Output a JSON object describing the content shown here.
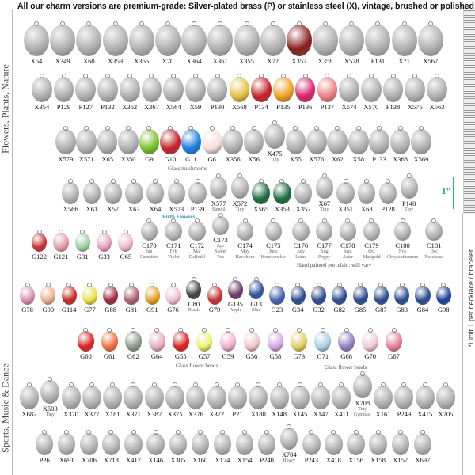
{
  "title": "All our charm versions are premium-grade: Silver-plated brass (P) or stainless steel (X), vintage, brushed or polished finish",
  "sections": [
    "Flowers, Plants, Nature",
    "Sports, Music & Dance"
  ],
  "limit_note": "*Limit 1 per necklace / bracelet",
  "ruler_label": "1\"",
  "captions": {
    "mushrooms": "Glass mushrooms",
    "birth_flowers": "Birth Flowers",
    "porcelain": "Hand painted porcelain: will vary",
    "glass_beads_1": "Glass flower beads",
    "glass_beads_2": "Glass flower beads"
  },
  "colors": {
    "silver": "#a9a9a9",
    "accent_ruler": "#1ab0c8",
    "birth_flowers_heading": "#3a8fd0"
  },
  "rows": [
    {
      "items": [
        {
          "id": "X54"
        },
        {
          "id": "X349"
        },
        {
          "id": "X60"
        },
        {
          "id": "X359"
        },
        {
          "id": "X365"
        },
        {
          "id": "X70"
        },
        {
          "id": "X364"
        },
        {
          "id": "X361"
        },
        {
          "id": "X355"
        },
        {
          "id": "X72"
        },
        {
          "id": "X357",
          "c": "#8b1c1c"
        },
        {
          "id": "X358"
        },
        {
          "id": "X578"
        },
        {
          "id": "P131"
        },
        {
          "id": "X71"
        },
        {
          "id": "X567"
        }
      ]
    },
    {
      "items": [
        {
          "id": "X354"
        },
        {
          "id": "P129"
        },
        {
          "id": "P127"
        },
        {
          "id": "P132"
        },
        {
          "id": "X362"
        },
        {
          "id": "X367"
        },
        {
          "id": "X564"
        },
        {
          "id": "X59"
        },
        {
          "id": "P130"
        },
        {
          "id": "X568",
          "c": "#e8c040"
        },
        {
          "id": "P134",
          "c": "#c81e28"
        },
        {
          "id": "P135",
          "c": "#f0a020"
        },
        {
          "id": "P136",
          "c": "#e0206a"
        },
        {
          "id": "P137",
          "c": "#f08080"
        },
        {
          "id": "X574"
        },
        {
          "id": "X570"
        },
        {
          "id": "P138"
        },
        {
          "id": "X575"
        },
        {
          "id": "X563"
        }
      ]
    },
    {
      "items": [
        {
          "id": "X579"
        },
        {
          "id": "X571"
        },
        {
          "id": "X65"
        },
        {
          "id": "X350"
        },
        {
          "id": "G9",
          "c": "#7cc22a"
        },
        {
          "id": "G10",
          "c": "#c8202a"
        },
        {
          "id": "G11",
          "c": "#1a7de0"
        },
        {
          "id": "G6",
          "c": "#f5dede"
        },
        {
          "id": "X356"
        },
        {
          "id": "X56"
        },
        {
          "id": "X475",
          "sub": "Tiny"
        },
        {
          "id": "X55"
        },
        {
          "id": "X576"
        },
        {
          "id": "X62"
        },
        {
          "id": "X58"
        },
        {
          "id": "P133"
        },
        {
          "id": "X368"
        },
        {
          "id": "X569"
        }
      ]
    },
    {
      "items": [
        {
          "id": "X566"
        },
        {
          "id": "X61"
        },
        {
          "id": "X57"
        },
        {
          "id": "X63"
        },
        {
          "id": "X64"
        },
        {
          "id": "X573"
        },
        {
          "id": "P139"
        },
        {
          "id": "X577",
          "sub": "Stencil"
        },
        {
          "id": "X572",
          "sub": "Tiny"
        },
        {
          "id": "X565",
          "c": "#1a6b3a"
        },
        {
          "id": "X353",
          "c": "#1a6b3a"
        },
        {
          "id": "X352"
        },
        {
          "id": "X67",
          "sub": "Tiny"
        },
        {
          "id": "X351"
        },
        {
          "id": "X68"
        },
        {
          "id": "P128"
        },
        {
          "id": "P140",
          "sub": "Tiny"
        }
      ]
    },
    {
      "items": [
        {
          "id": "G122",
          "c": "#c83030"
        },
        {
          "id": "G121",
          "c": "#e89aa8"
        },
        {
          "id": "G31",
          "c": "#9ad0a0"
        },
        {
          "id": "G33",
          "c": "#e8a0c0"
        },
        {
          "id": "G65",
          "c": "#f0b8c8"
        },
        {
          "id": "C170",
          "sub": "Jan Carnation"
        },
        {
          "id": "C171",
          "sub": "Feb Violet"
        },
        {
          "id": "C172",
          "sub": "Mar Daffodil"
        },
        {
          "id": "C173",
          "sub": "Apr Sweet Pea"
        },
        {
          "id": "C174",
          "sub": "May Hawthorn"
        },
        {
          "id": "C175",
          "sub": "June Honeysuckle"
        },
        {
          "id": "C176",
          "sub": "July Lotus"
        },
        {
          "id": "C177",
          "sub": "Aug Poppy"
        },
        {
          "id": "C178",
          "sub": "Sept Aster"
        },
        {
          "id": "C179",
          "sub": "Oct Marigold"
        },
        {
          "id": "C180",
          "sub": "Nov Chrysanthemum"
        },
        {
          "id": "C181",
          "sub": "Dec Narcissus"
        }
      ]
    },
    {
      "items": [
        {
          "id": "G78",
          "c": "#d890b0"
        },
        {
          "id": "G90",
          "c": "#e8b090"
        },
        {
          "id": "G114",
          "c": "#c82820"
        },
        {
          "id": "G77",
          "c": "#e8e040"
        },
        {
          "id": "G88",
          "c": "#a02840"
        },
        {
          "id": "G81",
          "c": "#b06070"
        },
        {
          "id": "G91",
          "c": "#e8a020"
        },
        {
          "id": "G76",
          "c": "#f0c0d0"
        },
        {
          "id": "G80",
          "sub": "Black",
          "c": "#404040"
        },
        {
          "id": "G79",
          "c": "#c83030"
        },
        {
          "id": "G135",
          "sub": "Purple",
          "c": "#6a3a6a"
        },
        {
          "id": "G13",
          "sub": "Blue",
          "c": "#3050a0"
        },
        {
          "id": "G23",
          "c": "#4060b0"
        },
        {
          "id": "G34",
          "c": "#2a4a90"
        },
        {
          "id": "G32",
          "c": "#2a4a90"
        },
        {
          "id": "G82",
          "c": "#2a4a90"
        },
        {
          "id": "G85",
          "c": "#2a4a90"
        },
        {
          "id": "G87",
          "c": "#2a4a90"
        },
        {
          "id": "G83",
          "c": "#2a4a90"
        },
        {
          "id": "G84",
          "c": "#2a4a90"
        },
        {
          "id": "G98",
          "c": "#1a3aa0"
        }
      ]
    },
    {
      "items": [
        {
          "id": "G60",
          "c": "#e02020"
        },
        {
          "id": "G61",
          "c": "#f07040"
        },
        {
          "id": "G62",
          "c": "#8a9a88"
        },
        {
          "id": "G64",
          "c": "#e8b0c0"
        },
        {
          "id": "G55",
          "c": "#e02020"
        },
        {
          "id": "G57",
          "c": "#f0f070"
        },
        {
          "id": "G59",
          "c": "#f0b0d0"
        },
        {
          "id": "G56",
          "c": "#f0c8c8"
        },
        {
          "id": "G58",
          "c": "#d8a8e8"
        },
        {
          "id": "G73",
          "c": "#e0d060"
        },
        {
          "id": "G71",
          "c": "#a8d0e0"
        },
        {
          "id": "G68",
          "c": "#9080c0"
        },
        {
          "id": "G70",
          "c": "#f0c8d8"
        },
        {
          "id": "G67",
          "c": "#e88098"
        }
      ]
    },
    {
      "items": [
        {
          "id": "X682"
        },
        {
          "id": "X503",
          "sub": "Tiny"
        },
        {
          "id": "X370"
        },
        {
          "id": "X377"
        },
        {
          "id": "X181"
        },
        {
          "id": "X371"
        },
        {
          "id": "X387"
        },
        {
          "id": "X375"
        },
        {
          "id": "X376"
        },
        {
          "id": "X372"
        },
        {
          "id": "P21"
        },
        {
          "id": "X180"
        },
        {
          "id": "X148"
        },
        {
          "id": "X145"
        },
        {
          "id": "X147"
        },
        {
          "id": "X411"
        },
        {
          "id": "X708",
          "sub": "Tiny Gymnast"
        },
        {
          "id": "X161"
        },
        {
          "id": "P249"
        },
        {
          "id": "X415"
        },
        {
          "id": "X705"
        }
      ]
    },
    {
      "items": [
        {
          "id": "P26"
        },
        {
          "id": "X691"
        },
        {
          "id": "X706"
        },
        {
          "id": "X718"
        },
        {
          "id": "X417"
        },
        {
          "id": "X146"
        },
        {
          "id": "X385"
        },
        {
          "id": "X160"
        },
        {
          "id": "X174"
        },
        {
          "id": "X154"
        },
        {
          "id": "P240"
        },
        {
          "id": "X704",
          "sub": "Heavy"
        },
        {
          "id": "P243"
        },
        {
          "id": "X418"
        },
        {
          "id": "X156"
        },
        {
          "id": "X158"
        },
        {
          "id": "X157"
        },
        {
          "id": "X697"
        }
      ]
    }
  ]
}
